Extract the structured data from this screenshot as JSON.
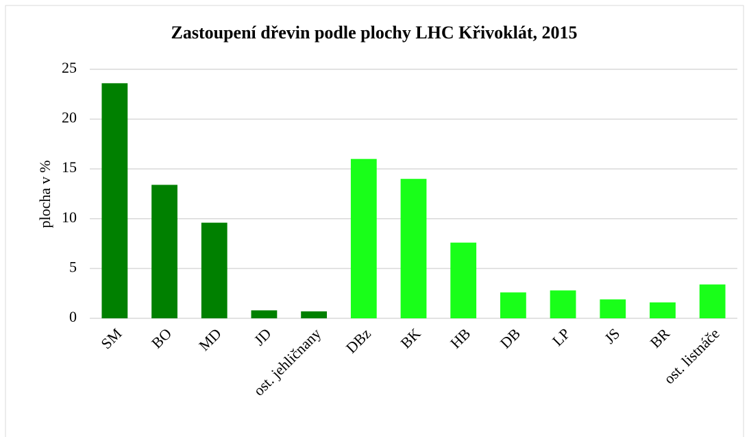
{
  "chart_data": {
    "type": "bar",
    "title": "Zastoupení dřevin podle plochy LHC Křivoklát, 2015",
    "y_label": "plocha v %",
    "categories": [
      "SM",
      "BO",
      "MD",
      "JD",
      "ost. jehličnany",
      "DBz",
      "BK",
      "HB",
      "DB",
      "LP",
      "JS",
      "BR",
      "ost. listnáče"
    ],
    "values": [
      23.6,
      13.4,
      9.6,
      0.8,
      0.7,
      16.0,
      14.0,
      7.6,
      2.6,
      2.8,
      1.9,
      1.6,
      3.4
    ],
    "colors": [
      "#008000",
      "#008000",
      "#008000",
      "#008000",
      "#008000",
      "#19ff19",
      "#19ff19",
      "#19ff19",
      "#19ff19",
      "#19ff19",
      "#19ff19",
      "#19ff19",
      "#19ff19"
    ],
    "ylim": [
      0,
      25
    ],
    "yticks": [
      0,
      5,
      10,
      15,
      20,
      25
    ],
    "grid": true
  }
}
